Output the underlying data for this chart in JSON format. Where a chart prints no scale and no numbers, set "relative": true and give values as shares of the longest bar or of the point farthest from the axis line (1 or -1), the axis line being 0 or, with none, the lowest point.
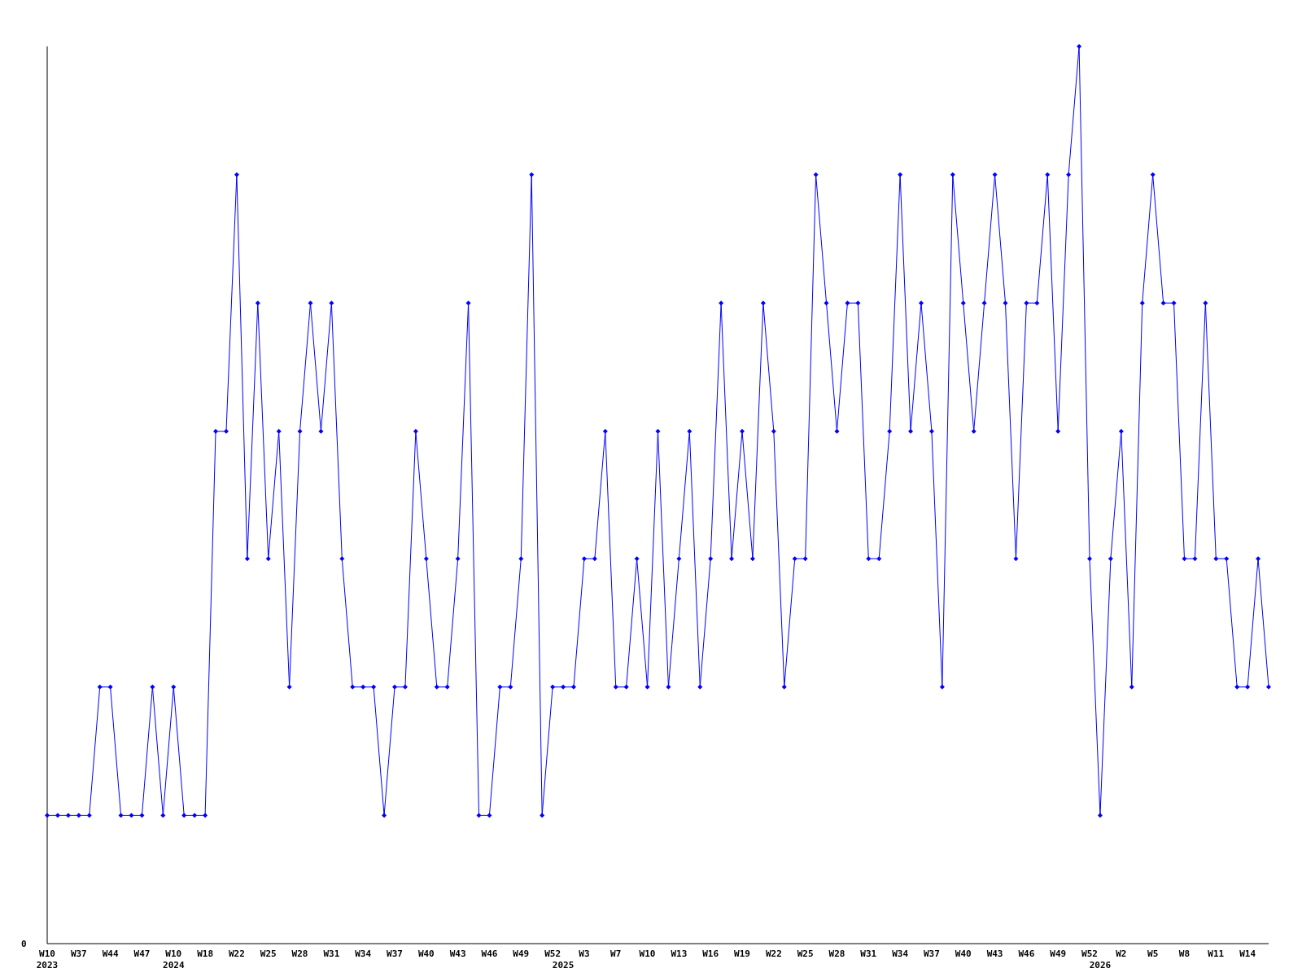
{
  "chart_data": {
    "type": "line",
    "relative": true,
    "marker": "diamond",
    "categories": [
      "W10\n2023",
      null,
      null,
      "W37",
      null,
      null,
      "W44",
      null,
      null,
      "W47",
      null,
      null,
      "W10\n2024",
      null,
      null,
      "W18",
      null,
      null,
      "W22",
      null,
      null,
      "W25",
      null,
      null,
      "W28",
      null,
      null,
      "W31",
      null,
      null,
      "W34",
      null,
      null,
      "W37",
      null,
      null,
      "W40",
      null,
      null,
      "W43",
      null,
      null,
      "W46",
      null,
      null,
      "W49",
      null,
      null,
      "W52",
      "\n2025",
      null,
      "W3",
      null,
      null,
      "W7",
      null,
      null,
      "W10",
      null,
      null,
      "W13",
      null,
      null,
      "W16",
      null,
      null,
      "W19",
      null,
      null,
      "W22",
      null,
      null,
      "W25",
      null,
      null,
      "W28",
      null,
      null,
      "W31",
      null,
      null,
      "W34",
      null,
      null,
      "W37",
      null,
      null,
      "W40",
      null,
      null,
      "W43",
      null,
      null,
      "W46",
      null,
      null,
      "W49",
      null,
      null,
      "W52",
      "\n2026",
      null,
      "W2",
      null,
      null,
      "W5",
      null,
      null,
      "W8",
      null,
      null,
      "W11",
      null,
      null,
      "W14",
      null,
      null
    ],
    "series": [
      {
        "color": "#0000ff",
        "values": [
          0.143,
          0.143,
          0.143,
          0.143,
          0.143,
          0.286,
          0.286,
          0.143,
          0.143,
          0.143,
          0.286,
          0.143,
          0.286,
          0.143,
          0.143,
          0.143,
          0.571,
          0.571,
          0.857,
          0.429,
          0.714,
          0.429,
          0.571,
          0.286,
          0.571,
          0.714,
          0.571,
          0.714,
          0.429,
          0.286,
          0.286,
          0.286,
          0.143,
          0.286,
          0.286,
          0.571,
          0.429,
          0.286,
          0.286,
          0.429,
          0.714,
          0.143,
          0.143,
          0.286,
          0.286,
          0.429,
          0.857,
          0.143,
          0.286,
          0.286,
          0.286,
          0.429,
          0.429,
          0.571,
          0.286,
          0.286,
          0.429,
          0.286,
          0.571,
          0.286,
          0.429,
          0.571,
          0.286,
          0.429,
          0.714,
          0.429,
          0.571,
          0.429,
          0.714,
          0.571,
          0.286,
          0.429,
          0.429,
          0.857,
          0.714,
          0.571,
          0.714,
          0.714,
          0.429,
          0.429,
          0.571,
          0.857,
          0.571,
          0.714,
          0.571,
          0.286,
          0.857,
          0.714,
          0.571,
          0.714,
          0.857,
          0.714,
          0.429,
          0.714,
          0.714,
          0.857,
          0.571,
          0.857,
          1,
          0.429,
          0.143,
          0.429,
          0.571,
          0.286,
          0.714,
          0.857,
          0.714,
          0.714,
          0.429,
          0.429,
          0.714,
          0.429,
          0.429,
          0.286,
          0.286,
          0.429,
          0.286
        ]
      }
    ],
    "annotations": [
      "0"
    ]
  }
}
